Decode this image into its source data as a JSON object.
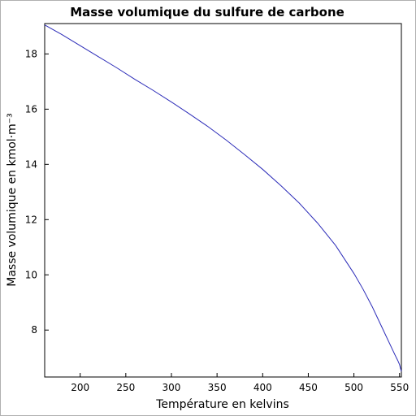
{
  "chart_data": {
    "type": "line",
    "title": "Masse volumique du sulfure de carbone",
    "xlabel": "Température en kelvins",
    "ylabel": "Masse volumique en kmol·m⁻³",
    "xlim": [
      161.11,
      552
    ],
    "ylim": [
      6.3,
      19.1
    ],
    "xticks": [
      200,
      250,
      300,
      350,
      400,
      450,
      500,
      550
    ],
    "yticks": [
      8,
      10,
      12,
      14,
      16,
      18
    ],
    "grid": false,
    "series": [
      {
        "color": "#2b2bb8",
        "x": [
          161.11,
          180,
          200,
          220,
          240,
          260,
          280,
          300,
          320,
          340,
          360,
          380,
          400,
          420,
          440,
          460,
          480,
          500,
          510,
          520,
          530,
          540,
          545,
          548,
          550,
          551,
          552
        ],
        "y": [
          19.05,
          18.7,
          18.3,
          17.9,
          17.5,
          17.08,
          16.68,
          16.26,
          15.82,
          15.37,
          14.88,
          14.36,
          13.82,
          13.23,
          12.6,
          11.88,
          11.06,
          10.05,
          9.48,
          8.85,
          8.15,
          7.45,
          7.1,
          6.9,
          6.75,
          6.62,
          6.5
        ]
      }
    ]
  }
}
